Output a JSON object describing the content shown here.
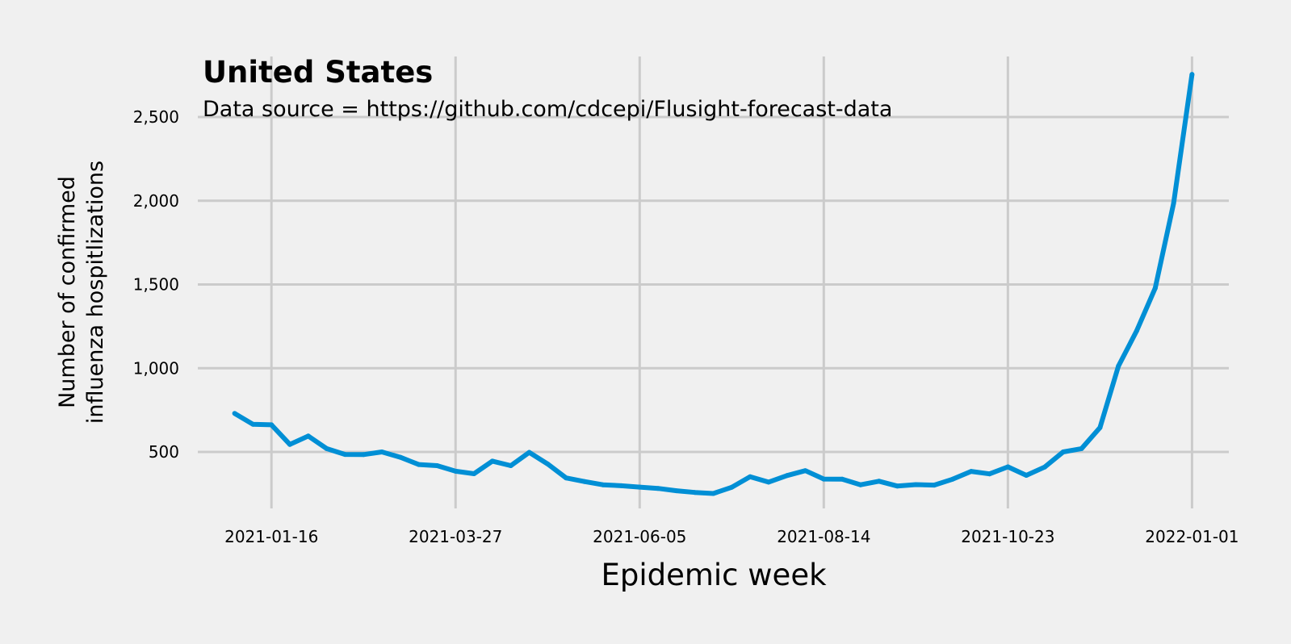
{
  "colors": {
    "background": "#f0f0f0",
    "grid": "#cbcbcb",
    "line": "#008fd5"
  },
  "chart_data": {
    "type": "line",
    "title": "United States",
    "subtitle": "Data source = https://github.com/cdcepi/Flusight-forecast-data",
    "xlabel": "Epidemic week",
    "ylabel": [
      "Number of confirmed",
      "influenza hospitlizations"
    ],
    "grid": true,
    "xlim": [
      "2020-12-19",
      "2022-01-15"
    ],
    "ylim": [
      150,
      2850
    ],
    "x_ticks": [
      "2021-01-16",
      "2021-03-27",
      "2021-06-05",
      "2021-08-14",
      "2021-10-23",
      "2022-01-01"
    ],
    "y_ticks": [
      500,
      1000,
      1500,
      2000,
      2500
    ],
    "y_tick_labels": [
      "500",
      "1,000",
      "1,500",
      "2,000",
      "2,500"
    ],
    "series": [
      {
        "x": [
          "2021-01-02",
          "2021-01-09",
          "2021-01-16",
          "2021-01-23",
          "2021-01-30",
          "2021-02-06",
          "2021-02-13",
          "2021-02-20",
          "2021-02-27",
          "2021-03-06",
          "2021-03-13",
          "2021-03-20",
          "2021-03-27",
          "2021-04-03",
          "2021-04-10",
          "2021-04-17",
          "2021-04-24",
          "2021-05-01",
          "2021-05-08",
          "2021-05-15",
          "2021-05-22",
          "2021-05-29",
          "2021-06-05",
          "2021-06-12",
          "2021-06-19",
          "2021-06-26",
          "2021-07-03",
          "2021-07-10",
          "2021-07-17",
          "2021-07-24",
          "2021-07-31",
          "2021-08-07",
          "2021-08-14",
          "2021-08-21",
          "2021-08-28",
          "2021-09-04",
          "2021-09-11",
          "2021-09-18",
          "2021-09-25",
          "2021-10-02",
          "2021-10-09",
          "2021-10-16",
          "2021-10-23",
          "2021-10-30",
          "2021-11-06",
          "2021-11-13",
          "2021-11-20",
          "2021-11-27",
          "2021-12-04",
          "2021-12-11",
          "2021-12-18",
          "2021-12-25",
          "2022-01-01"
        ],
        "values": [
          730,
          665,
          662,
          545,
          595,
          520,
          485,
          484,
          500,
          468,
          425,
          418,
          385,
          370,
          445,
          418,
          497,
          428,
          345,
          323,
          304,
          298,
          290,
          282,
          268,
          258,
          252,
          289,
          352,
          320,
          359,
          388,
          338,
          337,
          304,
          325,
          296,
          305,
          302,
          337,
          384,
          369,
          411,
          360,
          410,
          500,
          520,
          645,
          1012,
          1225,
          1478,
          1985,
          2755
        ]
      }
    ]
  }
}
